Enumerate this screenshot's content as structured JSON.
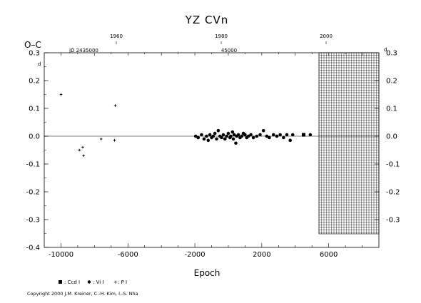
{
  "chart_data": {
    "type": "scatter",
    "title": "YZ  CVn",
    "ylabel": "O–C",
    "ylabel_unit": "d",
    "xlabel": "Epoch",
    "xlim": [
      -11000,
      9000
    ],
    "ylim": [
      -0.4,
      0.3
    ],
    "grid": false,
    "x_ticks": [
      "-10000",
      "-6000",
      "-2000",
      "2000",
      "6000"
    ],
    "y_ticks_left": [
      "0.3",
      "0.2",
      "0.1",
      "0.0",
      "-0.1",
      "-0.2",
      "-0.3",
      "-0.4"
    ],
    "y_ticks_right": [
      "0.3",
      "0.2",
      "0.1",
      "0.0",
      "-0.1",
      "-0.2",
      "-0.3"
    ],
    "right_axis_unit": "d",
    "top_axis": {
      "label": "JD 2435000",
      "mid_label": "45000",
      "year_labels": [
        "1960",
        "1980",
        "2000"
      ]
    },
    "legend": [
      {
        "symbol": "square",
        "label": ": Ccd I"
      },
      {
        "symbol": "circle",
        "label": ": Vi I"
      },
      {
        "symbol": "plus",
        "label": ": P I"
      }
    ],
    "series": [
      {
        "name": ": Ccd I",
        "symbol": "square",
        "points": [
          [
            4500,
            0.005
          ]
        ]
      },
      {
        "name": ": Vi I",
        "symbol": "circle",
        "points": [
          [
            -1950,
            0.0
          ],
          [
            -1800,
            -0.005
          ],
          [
            -1600,
            0.005
          ],
          [
            -1450,
            -0.01
          ],
          [
            -1300,
            0.0
          ],
          [
            -1200,
            -0.015
          ],
          [
            -1100,
            0.005
          ],
          [
            -1000,
            -0.005
          ],
          [
            -900,
            0.0
          ],
          [
            -800,
            0.01
          ],
          [
            -700,
            -0.01
          ],
          [
            -600,
            0.02
          ],
          [
            -500,
            0.0
          ],
          [
            -400,
            -0.005
          ],
          [
            -300,
            0.005
          ],
          [
            -200,
            -0.01
          ],
          [
            -100,
            0.0
          ],
          [
            0,
            0.01
          ],
          [
            100,
            -0.005
          ],
          [
            150,
            0.0
          ],
          [
            250,
            0.015
          ],
          [
            300,
            -0.01
          ],
          [
            350,
            0.005
          ],
          [
            450,
            -0.025
          ],
          [
            500,
            0.0
          ],
          [
            600,
            0.005
          ],
          [
            700,
            -0.005
          ],
          [
            800,
            0.0
          ],
          [
            900,
            0.01
          ],
          [
            1000,
            0.005
          ],
          [
            1100,
            -0.005
          ],
          [
            1200,
            0.0
          ],
          [
            1350,
            0.005
          ],
          [
            1500,
            -0.005
          ],
          [
            1700,
            0.0
          ],
          [
            1900,
            0.005
          ],
          [
            2100,
            0.02
          ],
          [
            2300,
            0.0
          ],
          [
            2450,
            -0.005
          ],
          [
            2700,
            0.005
          ],
          [
            2900,
            0.0
          ],
          [
            3100,
            0.005
          ],
          [
            3300,
            -0.005
          ],
          [
            3500,
            0.005
          ],
          [
            3700,
            -0.015
          ],
          [
            3850,
            0.005
          ],
          [
            4900,
            0.005
          ]
        ]
      },
      {
        "name": ": P I",
        "symbol": "plus",
        "points": [
          [
            -10000,
            0.15
          ],
          [
            -8900,
            -0.05
          ],
          [
            -8700,
            -0.04
          ],
          [
            -8650,
            -0.07
          ],
          [
            -7600,
            -0.01
          ],
          [
            -6750,
            0.11
          ],
          [
            -6800,
            -0.015
          ]
        ]
      }
    ]
  },
  "copyright": "Copyright 2000 J.M. Kreiner, C.-H. Kim, I.-S. Nha",
  "colors": {
    "ink": "#000000",
    "background": "#ffffff",
    "future_grid": "#000000"
  }
}
